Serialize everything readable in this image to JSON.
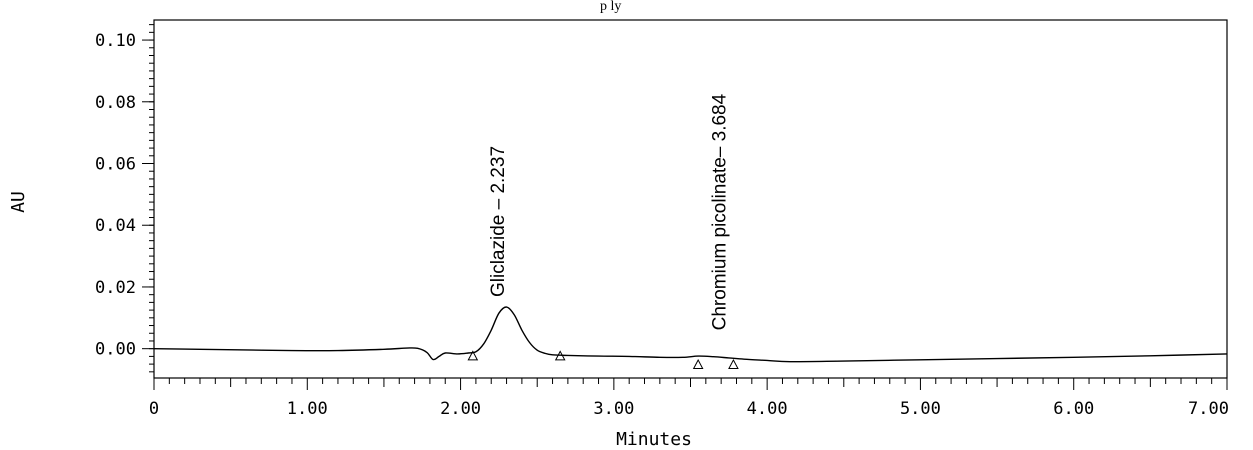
{
  "chart_data": {
    "type": "line",
    "title": "",
    "xlabel": "Minutes",
    "ylabel": "AU",
    "xlim": [
      0,
      7.0
    ],
    "ylim": [
      -0.0095,
      0.1065
    ],
    "x_ticks": [
      0,
      1.0,
      2.0,
      3.0,
      4.0,
      5.0,
      6.0,
      7.0
    ],
    "x_tick_labels": [
      "0",
      "1.00",
      "2.00",
      "3.00",
      "4.00",
      "5.00",
      "6.00",
      "7.00"
    ],
    "y_ticks": [
      0.0,
      0.02,
      0.04,
      0.06,
      0.08,
      0.1
    ],
    "y_tick_labels": [
      "0.00",
      "0.02",
      "0.04",
      "0.06",
      "0.08",
      "0.10"
    ],
    "grid": false,
    "series": [
      {
        "color": "#000000",
        "x": [
          0,
          0.3,
          0.6,
          0.9,
          1.2,
          1.5,
          1.65,
          1.72,
          1.78,
          1.82,
          1.86,
          1.9,
          1.98,
          2.05,
          2.1,
          2.15,
          2.2,
          2.25,
          2.3,
          2.35,
          2.4,
          2.45,
          2.5,
          2.55,
          2.6,
          2.7,
          2.9,
          3.1,
          3.3,
          3.45,
          3.55,
          3.65,
          3.75,
          3.85,
          4.0,
          4.15,
          4.5,
          5.0,
          5.5,
          6.0,
          6.5,
          7.0
        ],
        "y": [
          0.0,
          -0.0002,
          -0.0004,
          -0.0006,
          -0.0006,
          -0.0002,
          0.0002,
          0.0001,
          -0.0012,
          -0.0035,
          -0.0025,
          -0.0014,
          -0.0017,
          -0.0014,
          -0.001,
          0.0015,
          0.006,
          0.0115,
          0.0135,
          0.011,
          0.006,
          0.002,
          -0.0005,
          -0.0015,
          -0.002,
          -0.0022,
          -0.0024,
          -0.0025,
          -0.0028,
          -0.0028,
          -0.0024,
          -0.0026,
          -0.003,
          -0.0034,
          -0.0038,
          -0.0042,
          -0.004,
          -0.0036,
          -0.0032,
          -0.0028,
          -0.0023,
          -0.0017
        ]
      }
    ],
    "annotations": [
      {
        "text": "Gliclazide – 2.237",
        "x": 2.237,
        "y": 0.0135
      },
      {
        "text": "Chromium picolinate– 3.684",
        "x": 3.684,
        "y": -0.0025
      }
    ],
    "integration_markers": [
      {
        "x": 2.08,
        "y": -0.0025
      },
      {
        "x": 2.65,
        "y": -0.0025
      },
      {
        "x": 3.55,
        "y": -0.0053
      },
      {
        "x": 3.78,
        "y": -0.0053
      }
    ],
    "caption_fragment": "p          ly"
  }
}
